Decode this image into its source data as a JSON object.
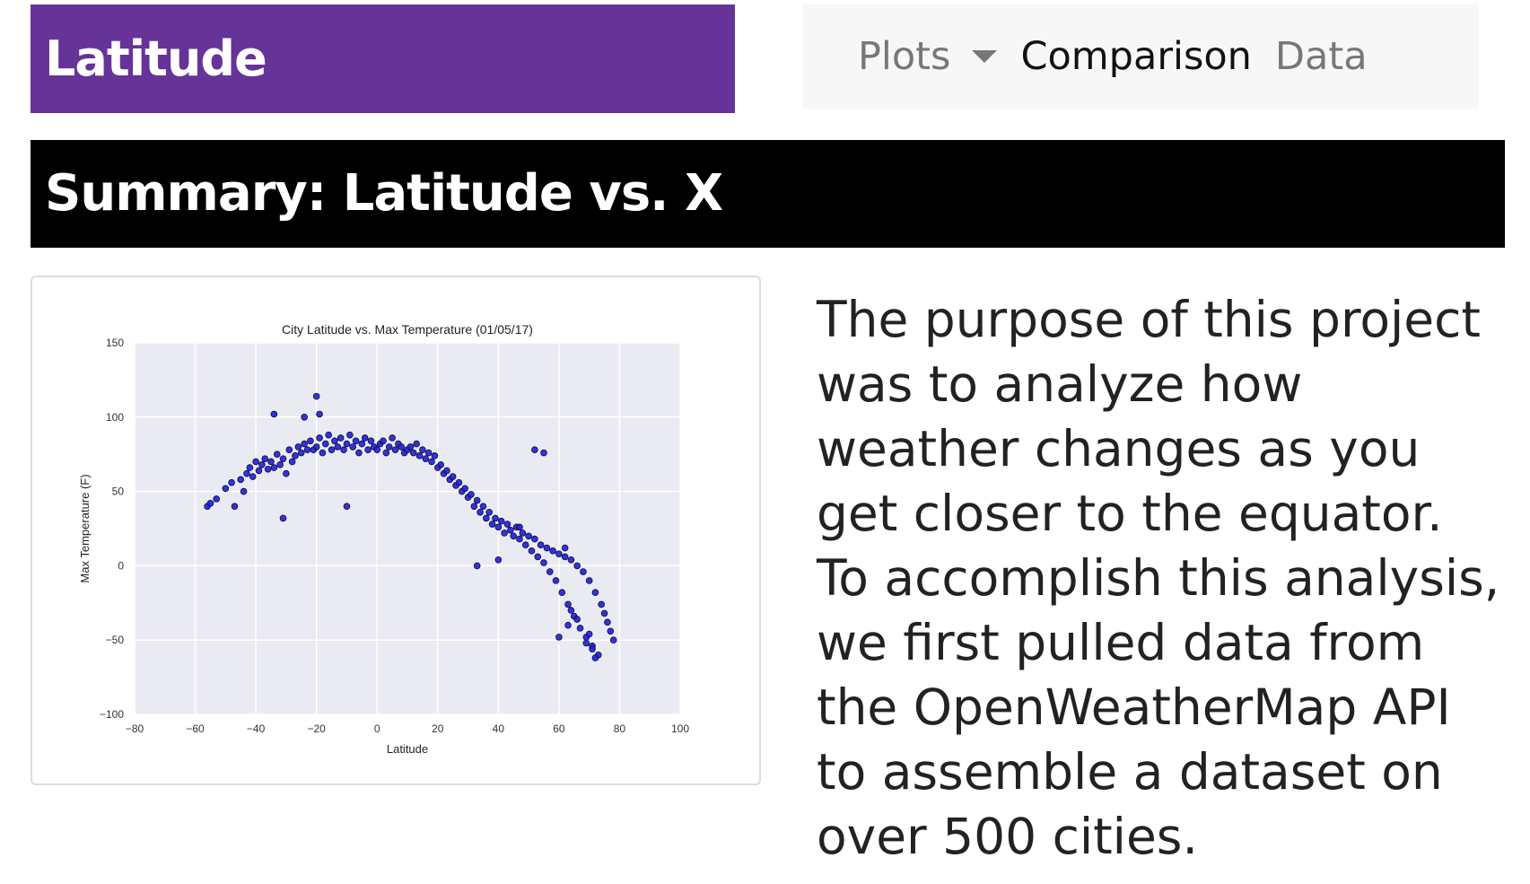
{
  "header": {
    "brand": "Latitude"
  },
  "nav": {
    "plots_label": "Plots",
    "comparison_label": "Comparison",
    "data_label": "Data"
  },
  "banner": {
    "title": "Summary: Latitude vs. X"
  },
  "description": "The purpose of this project was to analyze how weather changes as you get closer to the equator. To accomplish this analysis, we first pulled data from the OpenWeatherMap API to assemble a dataset on over 500 cities.",
  "chart_data": {
    "type": "scatter",
    "title": "City Latitude vs. Max Temperature (01/05/17)",
    "xlabel": "Latitude",
    "ylabel": "Max Temperature (F)",
    "xlim": [
      -80,
      100
    ],
    "ylim": [
      -100,
      150
    ],
    "xticks": [
      "-80",
      "-60",
      "-40",
      "-20",
      "0",
      "20",
      "40",
      "60",
      "80",
      "100"
    ],
    "yticks": [
      "150",
      "100",
      "50",
      "0",
      "-50",
      "-100"
    ],
    "grid": true,
    "marker_color": "#1f1fd6",
    "background_color": "#eaeaf2",
    "x": [
      -56,
      -55,
      -53,
      -50,
      -48,
      -47,
      -45,
      -44,
      -43,
      -42,
      -41,
      -40,
      -39,
      -38,
      -37,
      -36,
      -35,
      -34,
      -33,
      -32,
      -31,
      -30,
      -29,
      -28,
      -27,
      -26,
      -25,
      -24,
      -23,
      -22,
      -21,
      -20,
      -19,
      -18,
      -17,
      -16,
      -15,
      -14,
      -13,
      -12,
      -11,
      -10,
      -9,
      -8,
      -7,
      -6,
      -5,
      -4,
      -3,
      -2,
      -1,
      0,
      1,
      2,
      3,
      4,
      5,
      6,
      7,
      8,
      9,
      10,
      11,
      12,
      13,
      14,
      15,
      16,
      17,
      18,
      19,
      20,
      21,
      22,
      23,
      24,
      25,
      26,
      27,
      28,
      29,
      30,
      31,
      32,
      33,
      34,
      35,
      36,
      37,
      38,
      39,
      40,
      41,
      42,
      43,
      44,
      45,
      46,
      47,
      48,
      49,
      50,
      51,
      52,
      53,
      54,
      55,
      56,
      57,
      58,
      59,
      60,
      61,
      62,
      63,
      64,
      65,
      66,
      67,
      68,
      69,
      70,
      71,
      72,
      73,
      74,
      75,
      76,
      77,
      78,
      -34,
      -31,
      -24,
      -20,
      -19,
      -10,
      33,
      40,
      47,
      52,
      55,
      62,
      64,
      66,
      69,
      70,
      71,
      72,
      60,
      63
    ],
    "y": [
      40,
      42,
      45,
      52,
      56,
      40,
      58,
      50,
      62,
      66,
      60,
      70,
      64,
      68,
      72,
      65,
      70,
      66,
      75,
      68,
      72,
      62,
      78,
      70,
      74,
      80,
      76,
      82,
      78,
      84,
      78,
      80,
      86,
      76,
      82,
      88,
      78,
      84,
      80,
      86,
      78,
      82,
      88,
      80,
      84,
      76,
      82,
      86,
      78,
      84,
      80,
      78,
      82,
      84,
      76,
      80,
      86,
      78,
      82,
      80,
      76,
      78,
      80,
      76,
      82,
      74,
      78,
      72,
      76,
      70,
      74,
      66,
      68,
      62,
      64,
      58,
      60,
      54,
      56,
      50,
      52,
      46,
      48,
      40,
      44,
      36,
      40,
      32,
      36,
      28,
      32,
      26,
      30,
      22,
      28,
      24,
      20,
      26,
      18,
      22,
      14,
      20,
      10,
      18,
      6,
      14,
      2,
      12,
      -4,
      10,
      -10,
      8,
      -18,
      6,
      -26,
      4,
      -34,
      0,
      -42,
      -4,
      -48,
      -10,
      -54,
      -18,
      -60,
      -26,
      -32,
      -38,
      -44,
      -50,
      102,
      32,
      100,
      114,
      102,
      40,
      0,
      4,
      26,
      78,
      76,
      12,
      -30,
      -36,
      -52,
      -46,
      -56,
      -62,
      -48,
      -40
    ]
  }
}
